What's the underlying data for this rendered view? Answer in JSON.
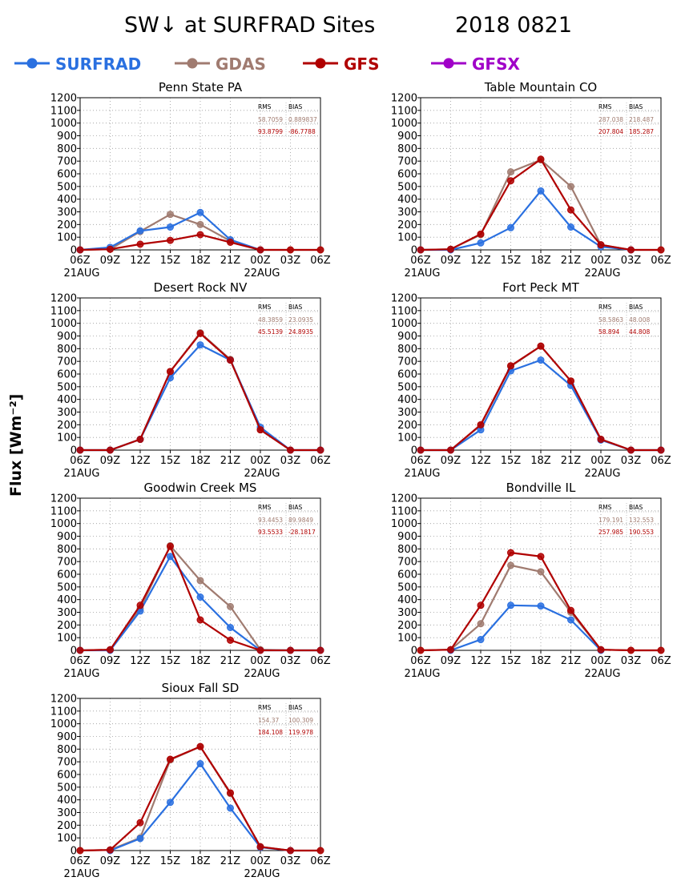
{
  "title": "SW↓ at SURFRAD Sites",
  "date": "2018 0821",
  "ylabel": "Flux [Wm⁻²]",
  "colors": {
    "SURFRAD": "#2a70e0",
    "GDAS": "#a07b70",
    "GFS": "#b00000",
    "GFSX": "#a000c8"
  },
  "legend": [
    "SURFRAD",
    "GDAS",
    "GFS",
    "GFSX"
  ],
  "stats_headers": {
    "rms": "RMS",
    "bias": "BIAS"
  },
  "chart_data": [
    {
      "type": "line",
      "title": "Penn State PA",
      "categories": [
        "06Z",
        "09Z",
        "12Z",
        "15Z",
        "18Z",
        "21Z",
        "00Z",
        "03Z",
        "06Z"
      ],
      "date_labels": [
        "21AUG",
        "",
        "",
        "",
        "",
        "",
        "22AUG",
        "",
        ""
      ],
      "ylim": [
        0,
        1200
      ],
      "grid": true,
      "series": [
        {
          "name": "SURFRAD",
          "values": [
            0,
            20,
            150,
            180,
            295,
            80,
            0,
            null,
            null
          ]
        },
        {
          "name": "GDAS",
          "values": [
            0,
            5,
            145,
            280,
            200,
            70,
            0,
            0,
            0
          ]
        },
        {
          "name": "GFS",
          "values": [
            0,
            5,
            45,
            75,
            120,
            60,
            0,
            0,
            0
          ]
        }
      ],
      "stats": [
        {
          "name": "GDAS",
          "rms": "58.7059",
          "bias": "0.889837"
        },
        {
          "name": "GFS",
          "rms": "93.8799",
          "bias": "-86.7788"
        }
      ]
    },
    {
      "type": "line",
      "title": "Table Mountain CO",
      "categories": [
        "06Z",
        "09Z",
        "12Z",
        "15Z",
        "18Z",
        "21Z",
        "00Z",
        "03Z",
        "06Z"
      ],
      "date_labels": [
        "21AUG",
        "",
        "",
        "",
        "",
        "",
        "22AUG",
        "",
        ""
      ],
      "ylim": [
        0,
        1200
      ],
      "grid": true,
      "series": [
        {
          "name": "SURFRAD",
          "values": [
            0,
            0,
            55,
            175,
            465,
            180,
            25,
            0,
            null
          ]
        },
        {
          "name": "GDAS",
          "values": [
            0,
            5,
            120,
            615,
            710,
            500,
            40,
            0,
            0
          ]
        },
        {
          "name": "GFS",
          "values": [
            0,
            5,
            125,
            545,
            715,
            315,
            40,
            0,
            0
          ]
        }
      ],
      "stats": [
        {
          "name": "GDAS",
          "rms": "287.038",
          "bias": "218.487"
        },
        {
          "name": "GFS",
          "rms": "207.804",
          "bias": "185.287"
        }
      ]
    },
    {
      "type": "line",
      "title": "Desert Rock NV",
      "categories": [
        "06Z",
        "09Z",
        "12Z",
        "15Z",
        "18Z",
        "21Z",
        "00Z",
        "03Z",
        "06Z"
      ],
      "date_labels": [
        "21AUG",
        "",
        "",
        "",
        "",
        "",
        "22AUG",
        "",
        ""
      ],
      "ylim": [
        0,
        1200
      ],
      "grid": true,
      "series": [
        {
          "name": "SURFRAD",
          "values": [
            0,
            0,
            85,
            570,
            830,
            710,
            180,
            0,
            0
          ]
        },
        {
          "name": "GDAS",
          "values": [
            0,
            0,
            85,
            620,
            925,
            715,
            160,
            0,
            0
          ]
        },
        {
          "name": "GFS",
          "values": [
            0,
            0,
            85,
            620,
            920,
            710,
            160,
            0,
            0
          ]
        }
      ],
      "stats": [
        {
          "name": "GDAS",
          "rms": "48.3859",
          "bias": "23.0935"
        },
        {
          "name": "GFS",
          "rms": "45.5139",
          "bias": "24.8935"
        }
      ]
    },
    {
      "type": "line",
      "title": "Fort Peck MT",
      "categories": [
        "06Z",
        "09Z",
        "12Z",
        "15Z",
        "18Z",
        "21Z",
        "00Z",
        "03Z",
        "06Z"
      ],
      "date_labels": [
        "21AUG",
        "",
        "",
        "",
        "",
        "",
        "22AUG",
        "",
        ""
      ],
      "ylim": [
        0,
        1200
      ],
      "grid": true,
      "series": [
        {
          "name": "SURFRAD",
          "values": [
            0,
            0,
            160,
            625,
            710,
            510,
            80,
            0,
            0
          ]
        },
        {
          "name": "GDAS",
          "values": [
            0,
            0,
            195,
            660,
            820,
            545,
            85,
            0,
            0
          ]
        },
        {
          "name": "GFS",
          "values": [
            0,
            0,
            200,
            665,
            820,
            545,
            85,
            0,
            0
          ]
        }
      ],
      "stats": [
        {
          "name": "GDAS",
          "rms": "58.5863",
          "bias": "48.008"
        },
        {
          "name": "GFS",
          "rms": "58.894",
          "bias": "44.808"
        }
      ]
    },
    {
      "type": "line",
      "title": "Goodwin Creek MS",
      "categories": [
        "06Z",
        "09Z",
        "12Z",
        "15Z",
        "18Z",
        "21Z",
        "00Z",
        "03Z",
        "06Z"
      ],
      "date_labels": [
        "21AUG",
        "",
        "",
        "",
        "",
        "",
        "22AUG",
        "",
        ""
      ],
      "ylim": [
        0,
        1200
      ],
      "grid": true,
      "series": [
        {
          "name": "SURFRAD",
          "values": [
            0,
            0,
            310,
            740,
            420,
            180,
            0,
            0,
            0
          ]
        },
        {
          "name": "GDAS",
          "values": [
            0,
            5,
            330,
            825,
            550,
            345,
            5,
            0,
            0
          ]
        },
        {
          "name": "GFS",
          "values": [
            0,
            5,
            355,
            820,
            240,
            80,
            0,
            0,
            0
          ]
        }
      ],
      "stats": [
        {
          "name": "GDAS",
          "rms": "93.4453",
          "bias": "89.9849"
        },
        {
          "name": "GFS",
          "rms": "93.5533",
          "bias": "-28.1817"
        }
      ]
    },
    {
      "type": "line",
      "title": "Bondville IL",
      "categories": [
        "06Z",
        "09Z",
        "12Z",
        "15Z",
        "18Z",
        "21Z",
        "00Z",
        "03Z",
        "06Z"
      ],
      "date_labels": [
        "21AUG",
        "",
        "",
        "",
        "",
        "",
        "22AUG",
        "",
        ""
      ],
      "ylim": [
        0,
        1200
      ],
      "grid": true,
      "series": [
        {
          "name": "SURFRAD",
          "values": [
            null,
            0,
            85,
            355,
            350,
            240,
            0,
            null,
            null
          ]
        },
        {
          "name": "GDAS",
          "values": [
            0,
            5,
            210,
            670,
            620,
            300,
            5,
            0,
            0
          ]
        },
        {
          "name": "GFS",
          "values": [
            0,
            5,
            355,
            770,
            740,
            315,
            5,
            0,
            0
          ]
        }
      ],
      "stats": [
        {
          "name": "GDAS",
          "rms": "179.191",
          "bias": "132.553"
        },
        {
          "name": "GFS",
          "rms": "257.985",
          "bias": "190.553"
        }
      ]
    },
    {
      "type": "line",
      "title": "Sioux Fall SD",
      "categories": [
        "06Z",
        "09Z",
        "12Z",
        "15Z",
        "18Z",
        "21Z",
        "00Z",
        "03Z",
        "06Z"
      ],
      "date_labels": [
        "21AUG",
        "",
        "",
        "",
        "",
        "",
        "22AUG",
        "",
        ""
      ],
      "ylim": [
        0,
        1200
      ],
      "grid": true,
      "series": [
        {
          "name": "SURFRAD",
          "values": [
            null,
            0,
            95,
            380,
            685,
            335,
            25,
            0,
            null
          ]
        },
        {
          "name": "GDAS",
          "values": [
            0,
            5,
            100,
            715,
            820,
            450,
            30,
            0,
            0
          ]
        },
        {
          "name": "GFS",
          "values": [
            0,
            5,
            220,
            720,
            820,
            455,
            30,
            0,
            0
          ]
        }
      ],
      "stats": [
        {
          "name": "GDAS",
          "rms": "154.37",
          "bias": "100.309"
        },
        {
          "name": "GFS",
          "rms": "184.108",
          "bias": "119.978"
        }
      ]
    }
  ]
}
